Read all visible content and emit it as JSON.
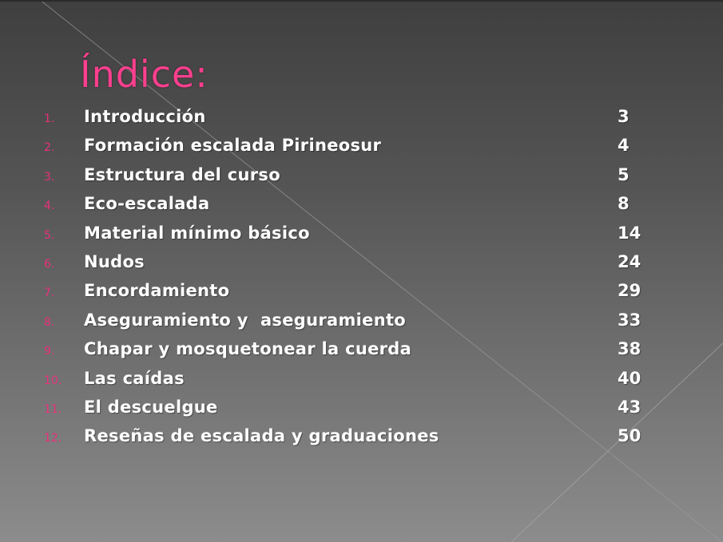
{
  "title": "Índice:",
  "colors": {
    "accent": "#ff3f8e",
    "number": "#e8317a",
    "text": "#ffffff"
  },
  "items": [
    {
      "num": "1.",
      "label": "Introducción",
      "page": "3"
    },
    {
      "num": "2.",
      "label": "Formación escalada Pirineosur",
      "page": "4"
    },
    {
      "num": "3.",
      "label": "Estructura del curso",
      "page": "5"
    },
    {
      "num": "4.",
      "label": "Eco-escalada",
      "page": "8"
    },
    {
      "num": "5.",
      "label": "Material mínimo básico",
      "page": "14"
    },
    {
      "num": "6.",
      "label": "Nudos",
      "page": "24"
    },
    {
      "num": "7.",
      "label": "Encordamiento",
      "page": "29"
    },
    {
      "num": "8.",
      "label": "Aseguramiento y  aseguramiento",
      "page": "33"
    },
    {
      "num": "9.",
      "label": "Chapar y mosquetonear la cuerda",
      "page": "38"
    },
    {
      "num": "10.",
      "label": "Las caídas",
      "page": "40"
    },
    {
      "num": "11.",
      "label": "El descuelgue",
      "page": "43"
    },
    {
      "num": "12.",
      "label": "Reseñas de escalada y graduaciones",
      "page": "50"
    }
  ]
}
